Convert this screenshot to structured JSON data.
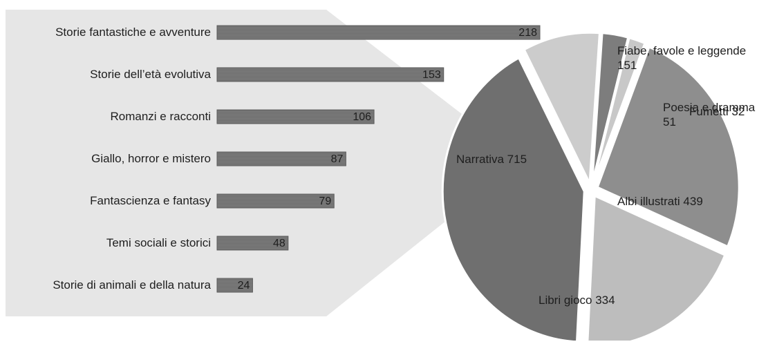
{
  "colors": {
    "panel": "#e6e6e6",
    "bar": "#7a7a7a",
    "bar_text": "#1e1e1e",
    "label_text": "#1e1e1e",
    "pie_gap": "#ffffff"
  },
  "chart_data": [
    {
      "type": "bar",
      "orientation": "horizontal",
      "categories": [
        "Storie fantastiche e avventure",
        "Storie dell’età evolutiva",
        "Romanzi e racconti",
        "Giallo, horror e mistero",
        "Fantascienza e fantasy",
        "Temi sociali e storici",
        "Storie di animali e della natura"
      ],
      "values": [
        218,
        153,
        106,
        87,
        79,
        48,
        24
      ],
      "data_labels": [
        "218",
        "153",
        "106",
        "87",
        "79",
        "48",
        "24"
      ],
      "grid": false,
      "legend": "none"
    },
    {
      "type": "pie",
      "slices": [
        {
          "label": "Narrativa",
          "value": 715,
          "display": "Narrativa   715",
          "color": "#6f6f6f"
        },
        {
          "label": "Fiabe, favole e leggende",
          "value": 151,
          "display": "Fiabe, favole e leggende\n151",
          "color": "#cccccc"
        },
        {
          "label": "Poesia e dramma",
          "value": 51,
          "display": "Poesia e dramma\n51",
          "color": "#7d7d7d"
        },
        {
          "label": "Fumetti",
          "value": 32,
          "display": "Fumetti 32",
          "color": "#c8c8c8"
        },
        {
          "label": "Albi illustrati",
          "value": 439,
          "display": "Albi illustrati 439",
          "color": "#8e8e8e"
        },
        {
          "label": "Libri gioco",
          "value": 334,
          "display": "Libri gioco 334",
          "color": "#bdbdbd"
        }
      ],
      "exploded": true,
      "legend": "none"
    }
  ]
}
